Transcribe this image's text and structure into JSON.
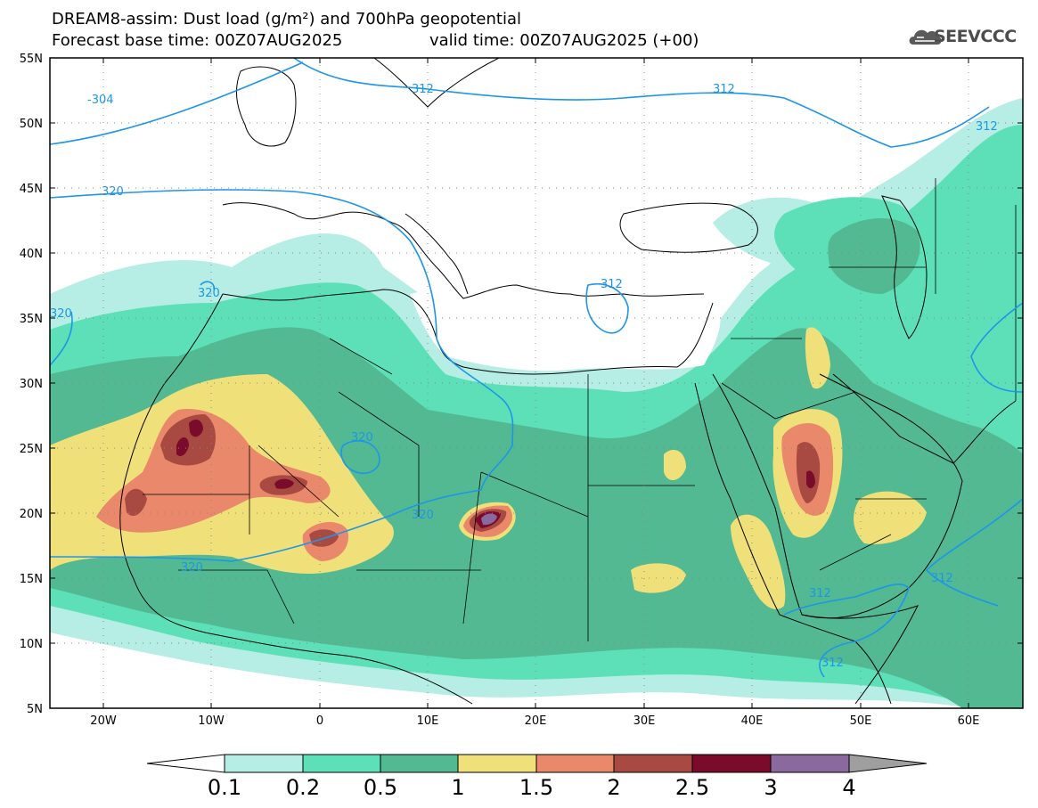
{
  "title": {
    "line1": "DREAM8-assim: Dust load (g/m²) and 700hPa geopotential",
    "line2a": "Forecast base time: 00Z07AUG2025",
    "line2b": "valid time: 00Z07AUG2025 (+00)"
  },
  "logo": {
    "text": "SEEVCCC",
    "icon": "cloud-icon"
  },
  "axes": {
    "lat_labels": [
      "55N",
      "50N",
      "45N",
      "40N",
      "35N",
      "30N",
      "25N",
      "20N",
      "15N",
      "10N",
      "5N"
    ],
    "lon_labels": [
      "20W",
      "10W",
      "0",
      "10E",
      "20E",
      "30E",
      "40E",
      "50E",
      "60E"
    ]
  },
  "contours": {
    "labels": [
      "-304",
      "312",
      "312",
      "312",
      "320",
      "320",
      "320",
      "320",
      "320",
      "320",
      "312",
      "312",
      "312",
      "312"
    ]
  },
  "colorbar": {
    "labels": [
      "0.1",
      "0.2",
      "0.5",
      "1",
      "1.5",
      "2",
      "2.5",
      "3",
      "4"
    ],
    "colors": [
      "#b6ede4",
      "#5de0b8",
      "#52b992",
      "#f0e07a",
      "#e9886a",
      "#a94a42",
      "#7b0b2b",
      "#8a6a9e",
      "#9f9f9f"
    ]
  },
  "colors": {
    "very_light": "#b6ede4",
    "light": "#5de0b8",
    "medium": "#52b992",
    "yellow": "#f0e07a",
    "orange": "#e9886a",
    "brown": "#a94a42",
    "maroon": "#7b0b2b",
    "contour": "#1e96e8"
  }
}
